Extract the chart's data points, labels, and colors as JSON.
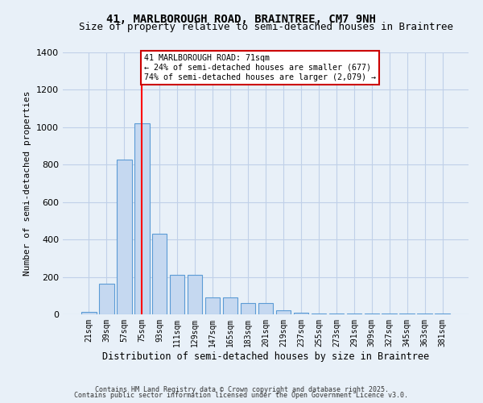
{
  "title": "41, MARLBOROUGH ROAD, BRAINTREE, CM7 9NH",
  "subtitle": "Size of property relative to semi-detached houses in Braintree",
  "xlabel": "Distribution of semi-detached houses by size in Braintree",
  "ylabel": "Number of semi-detached properties",
  "categories": [
    "21sqm",
    "39sqm",
    "57sqm",
    "75sqm",
    "93sqm",
    "111sqm",
    "129sqm",
    "147sqm",
    "165sqm",
    "183sqm",
    "201sqm",
    "219sqm",
    "237sqm",
    "255sqm",
    "273sqm",
    "291sqm",
    "309sqm",
    "327sqm",
    "345sqm",
    "363sqm",
    "381sqm"
  ],
  "values": [
    15,
    165,
    825,
    1020,
    430,
    210,
    210,
    90,
    90,
    60,
    60,
    20,
    10,
    5,
    5,
    5,
    5,
    5,
    5,
    5,
    5
  ],
  "bar_color": "#c5d8f0",
  "bar_edge_color": "#5b9bd5",
  "bar_width": 0.85,
  "ylim": [
    0,
    1400
  ],
  "yticks": [
    0,
    200,
    400,
    600,
    800,
    1000,
    1200,
    1400
  ],
  "red_line_x": 3.0,
  "annotation_text": "41 MARLBOROUGH ROAD: 71sqm\n← 24% of semi-detached houses are smaller (677)\n74% of semi-detached houses are larger (2,079) →",
  "annotation_box_color": "#ffffff",
  "annotation_box_edge": "#cc0000",
  "grid_color": "#c0d0e8",
  "bg_color": "#e8f0f8",
  "footer1": "Contains HM Land Registry data © Crown copyright and database right 2025.",
  "footer2": "Contains public sector information licensed under the Open Government Licence v3.0."
}
